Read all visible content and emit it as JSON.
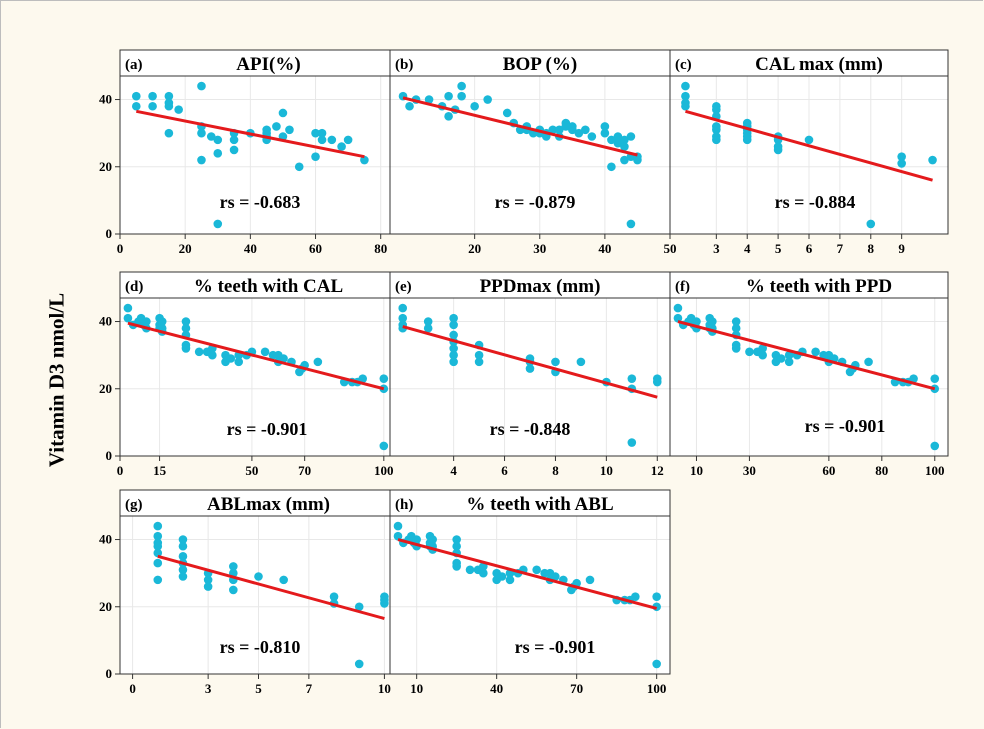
{
  "ylabel": "Vitamin D3 nmol/L",
  "colors": {
    "points": "#1ab8d8",
    "fit_line": "#e41a1c"
  },
  "chart_data": [
    {
      "type": "scatter",
      "tag": "(a)",
      "title": "API(%)",
      "annotation": "rs = -0.683",
      "xlim": [
        0,
        85
      ],
      "ylim": [
        0,
        47
      ],
      "xticks": [
        0,
        20,
        40,
        60,
        80
      ],
      "yticks": [
        0,
        20,
        40
      ],
      "show_y_labels": true,
      "points": [
        [
          5,
          41
        ],
        [
          5,
          38
        ],
        [
          10,
          41
        ],
        [
          10,
          38
        ],
        [
          15,
          41
        ],
        [
          15,
          38
        ],
        [
          15,
          39
        ],
        [
          15,
          30
        ],
        [
          18,
          37
        ],
        [
          25,
          44
        ],
        [
          25,
          32
        ],
        [
          25,
          30
        ],
        [
          25,
          22
        ],
        [
          28,
          29
        ],
        [
          30,
          28
        ],
        [
          30,
          24
        ],
        [
          30,
          3
        ],
        [
          35,
          30
        ],
        [
          35,
          25
        ],
        [
          40,
          30
        ],
        [
          45,
          31
        ],
        [
          45,
          29
        ],
        [
          45,
          30
        ],
        [
          48,
          32
        ],
        [
          50,
          36
        ],
        [
          50,
          29
        ],
        [
          52,
          31
        ],
        [
          55,
          20
        ],
        [
          60,
          30
        ],
        [
          60,
          23
        ],
        [
          62,
          28
        ],
        [
          62,
          30
        ],
        [
          65,
          28
        ],
        [
          68,
          26
        ],
        [
          70,
          28
        ],
        [
          75,
          22
        ],
        [
          45,
          28
        ],
        [
          35,
          28
        ]
      ],
      "fit": [
        [
          5,
          36.5
        ],
        [
          75,
          23
        ]
      ]
    },
    {
      "type": "scatter",
      "tag": "(b)",
      "title": "BOP (%)",
      "annotation": "rs = -0.879",
      "xlim": [
        7,
        50
      ],
      "ylim": [
        0,
        47
      ],
      "xticks": [
        20,
        30,
        40,
        50
      ],
      "yticks": [
        0,
        20,
        40
      ],
      "show_y_labels": false,
      "points": [
        [
          9,
          41
        ],
        [
          10,
          38
        ],
        [
          11,
          40
        ],
        [
          13,
          40
        ],
        [
          15,
          38
        ],
        [
          16,
          41
        ],
        [
          16,
          35
        ],
        [
          17,
          37
        ],
        [
          18,
          44
        ],
        [
          18,
          41
        ],
        [
          20,
          38
        ],
        [
          22,
          40
        ],
        [
          25,
          36
        ],
        [
          26,
          33
        ],
        [
          27,
          31
        ],
        [
          28,
          32
        ],
        [
          28,
          31
        ],
        [
          29,
          30
        ],
        [
          30,
          31
        ],
        [
          31,
          29
        ],
        [
          31,
          30
        ],
        [
          32,
          31
        ],
        [
          33,
          29
        ],
        [
          33,
          31
        ],
        [
          34,
          33
        ],
        [
          35,
          32
        ],
        [
          35,
          31
        ],
        [
          36,
          30
        ],
        [
          37,
          31
        ],
        [
          38,
          29
        ],
        [
          40,
          32
        ],
        [
          40,
          30
        ],
        [
          41,
          20
        ],
        [
          41,
          28
        ],
        [
          42,
          27
        ],
        [
          42,
          29
        ],
        [
          43,
          28
        ],
        [
          43,
          26
        ],
        [
          43,
          22
        ],
        [
          44,
          29
        ],
        [
          44,
          23
        ],
        [
          44,
          3
        ],
        [
          45,
          22
        ],
        [
          45,
          23
        ],
        [
          34,
          32
        ],
        [
          30,
          30
        ]
      ],
      "fit": [
        [
          9,
          40.5
        ],
        [
          45,
          23.5
        ]
      ]
    },
    {
      "type": "scatter",
      "tag": "(c)",
      "title": "CAL max (mm)",
      "annotation": "rs = -0.884",
      "xlim": [
        1.5,
        10.5
      ],
      "ylim": [
        0,
        47
      ],
      "xticks": [
        3,
        4,
        5,
        6,
        7,
        8,
        9
      ],
      "yticks": [
        0,
        20,
        40
      ],
      "show_y_labels": false,
      "points": [
        [
          2,
          44
        ],
        [
          2,
          41
        ],
        [
          2,
          39
        ],
        [
          2,
          38
        ],
        [
          3,
          38
        ],
        [
          3,
          37
        ],
        [
          3,
          35
        ],
        [
          3,
          32
        ],
        [
          3,
          31
        ],
        [
          3,
          29
        ],
        [
          3,
          28
        ],
        [
          4,
          33
        ],
        [
          4,
          32
        ],
        [
          4,
          31
        ],
        [
          4,
          30
        ],
        [
          4,
          29
        ],
        [
          4,
          28
        ],
        [
          5,
          29
        ],
        [
          5,
          28
        ],
        [
          5,
          26
        ],
        [
          5,
          25
        ],
        [
          6,
          28
        ],
        [
          8,
          3
        ],
        [
          9,
          23
        ],
        [
          9,
          21
        ],
        [
          10,
          22
        ]
      ],
      "fit": [
        [
          2,
          36.5
        ],
        [
          10,
          16
        ]
      ]
    },
    {
      "type": "scatter",
      "tag": "(d)",
      "title": "% teeth with CAL",
      "annotation": "rs = -0.901",
      "xlim": [
        0,
        105
      ],
      "ylim": [
        0,
        47
      ],
      "xticks": [
        0,
        15,
        50,
        70,
        100
      ],
      "yticks": [
        0,
        20,
        40
      ],
      "show_y_labels": true,
      "points": [
        [
          3,
          44
        ],
        [
          3,
          41
        ],
        [
          5,
          39
        ],
        [
          7,
          40
        ],
        [
          8,
          41
        ],
        [
          9,
          39
        ],
        [
          10,
          38
        ],
        [
          10,
          40
        ],
        [
          15,
          38
        ],
        [
          15,
          41
        ],
        [
          15,
          39
        ],
        [
          16,
          40
        ],
        [
          16,
          38
        ],
        [
          16,
          37
        ],
        [
          25,
          40
        ],
        [
          25,
          38
        ],
        [
          25,
          36
        ],
        [
          25,
          33
        ],
        [
          25,
          32
        ],
        [
          30,
          31
        ],
        [
          33,
          31
        ],
        [
          35,
          30
        ],
        [
          40,
          30
        ],
        [
          40,
          28
        ],
        [
          42,
          29
        ],
        [
          45,
          28
        ],
        [
          48,
          30
        ],
        [
          50,
          31
        ],
        [
          55,
          31
        ],
        [
          58,
          30
        ],
        [
          60,
          30
        ],
        [
          62,
          29
        ],
        [
          65,
          28
        ],
        [
          68,
          25
        ],
        [
          69,
          26
        ],
        [
          70,
          27
        ],
        [
          75,
          28
        ],
        [
          85,
          22
        ],
        [
          88,
          22
        ],
        [
          90,
          22
        ],
        [
          92,
          23
        ],
        [
          100,
          23
        ],
        [
          100,
          20
        ],
        [
          100,
          3
        ],
        [
          60,
          28
        ],
        [
          45,
          30
        ],
        [
          35,
          32
        ]
      ],
      "fit": [
        [
          3,
          39.5
        ],
        [
          100,
          20
        ]
      ]
    },
    {
      "type": "scatter",
      "tag": "(e)",
      "title": "PPDmax (mm)",
      "annotation": "rs = -0.848",
      "xlim": [
        1.5,
        12.5
      ],
      "ylim": [
        0,
        47
      ],
      "xticks": [
        4,
        6,
        8,
        10,
        12
      ],
      "yticks": [
        0,
        20,
        40
      ],
      "show_y_labels": false,
      "points": [
        [
          2,
          44
        ],
        [
          2,
          41
        ],
        [
          2,
          39
        ],
        [
          2,
          38
        ],
        [
          3,
          40
        ],
        [
          3,
          38
        ],
        [
          4,
          41
        ],
        [
          4,
          39
        ],
        [
          4,
          36
        ],
        [
          4,
          34
        ],
        [
          4,
          32
        ],
        [
          4,
          30
        ],
        [
          4,
          28
        ],
        [
          5,
          33
        ],
        [
          5,
          30
        ],
        [
          5,
          28
        ],
        [
          7,
          29
        ],
        [
          7,
          28
        ],
        [
          7,
          26
        ],
        [
          8,
          28
        ],
        [
          8,
          25
        ],
        [
          9,
          28
        ],
        [
          10,
          22
        ],
        [
          11,
          23
        ],
        [
          11,
          20
        ],
        [
          11,
          4
        ],
        [
          12,
          23
        ],
        [
          12,
          22
        ]
      ],
      "fit": [
        [
          2,
          38.5
        ],
        [
          12,
          17.5
        ]
      ]
    },
    {
      "type": "scatter",
      "tag": "(f)",
      "title": "% teeth with PPD",
      "annotation": "rs = -0.901",
      "xlim": [
        0,
        105
      ],
      "ylim": [
        0,
        47
      ],
      "xticks": [
        10,
        30,
        60,
        80,
        100
      ],
      "yticks": [
        0,
        20,
        40
      ],
      "show_y_labels": false,
      "points": [
        [
          3,
          44
        ],
        [
          3,
          41
        ],
        [
          5,
          39
        ],
        [
          7,
          40
        ],
        [
          8,
          41
        ],
        [
          9,
          39
        ],
        [
          10,
          38
        ],
        [
          10,
          40
        ],
        [
          15,
          38
        ],
        [
          15,
          41
        ],
        [
          15,
          39
        ],
        [
          16,
          40
        ],
        [
          16,
          38
        ],
        [
          16,
          37
        ],
        [
          25,
          40
        ],
        [
          25,
          38
        ],
        [
          25,
          36
        ],
        [
          25,
          33
        ],
        [
          25,
          32
        ],
        [
          30,
          31
        ],
        [
          33,
          31
        ],
        [
          35,
          30
        ],
        [
          40,
          30
        ],
        [
          40,
          28
        ],
        [
          42,
          29
        ],
        [
          45,
          28
        ],
        [
          48,
          30
        ],
        [
          50,
          31
        ],
        [
          55,
          31
        ],
        [
          58,
          30
        ],
        [
          60,
          30
        ],
        [
          62,
          29
        ],
        [
          65,
          28
        ],
        [
          68,
          25
        ],
        [
          69,
          26
        ],
        [
          70,
          27
        ],
        [
          75,
          28
        ],
        [
          85,
          22
        ],
        [
          88,
          22
        ],
        [
          90,
          22
        ],
        [
          92,
          23
        ],
        [
          100,
          23
        ],
        [
          100,
          20
        ],
        [
          100,
          3
        ],
        [
          60,
          28
        ],
        [
          45,
          30
        ],
        [
          35,
          32
        ]
      ],
      "fit": [
        [
          3,
          40
        ],
        [
          100,
          20
        ]
      ]
    },
    {
      "type": "scatter",
      "tag": "(g)",
      "title": "ABLmax (mm)",
      "annotation": "rs = -0.810",
      "xlim": [
        -0.5,
        10.5
      ],
      "ylim": [
        0,
        47
      ],
      "xticks": [
        0,
        3,
        5,
        7,
        10
      ],
      "yticks": [
        0,
        20,
        40
      ],
      "show_y_labels": true,
      "points": [
        [
          1,
          44
        ],
        [
          1,
          41
        ],
        [
          1,
          39
        ],
        [
          1,
          38
        ],
        [
          1,
          36
        ],
        [
          1,
          33
        ],
        [
          1,
          28
        ],
        [
          2,
          40
        ],
        [
          2,
          38
        ],
        [
          2,
          35
        ],
        [
          2,
          33
        ],
        [
          2,
          31
        ],
        [
          2,
          29
        ],
        [
          3,
          30
        ],
        [
          3,
          28
        ],
        [
          3,
          26
        ],
        [
          4,
          32
        ],
        [
          4,
          30
        ],
        [
          4,
          28
        ],
        [
          4,
          25
        ],
        [
          5,
          29
        ],
        [
          6,
          28
        ],
        [
          8,
          23
        ],
        [
          8,
          21
        ],
        [
          9,
          20
        ],
        [
          9,
          3
        ],
        [
          10,
          23
        ],
        [
          10,
          22
        ],
        [
          10,
          21
        ]
      ],
      "fit": [
        [
          1,
          35
        ],
        [
          10,
          16.5
        ]
      ]
    },
    {
      "type": "scatter",
      "tag": "(h)",
      "title": "% teeth with ABL",
      "annotation": "rs = -0.901",
      "xlim": [
        0,
        105
      ],
      "ylim": [
        0,
        47
      ],
      "xticks": [
        10,
        40,
        70,
        100
      ],
      "yticks": [
        0,
        20,
        40
      ],
      "show_y_labels": false,
      "points": [
        [
          3,
          44
        ],
        [
          3,
          41
        ],
        [
          5,
          39
        ],
        [
          7,
          40
        ],
        [
          8,
          41
        ],
        [
          9,
          39
        ],
        [
          10,
          38
        ],
        [
          10,
          40
        ],
        [
          15,
          38
        ],
        [
          15,
          41
        ],
        [
          15,
          39
        ],
        [
          16,
          40
        ],
        [
          16,
          38
        ],
        [
          16,
          37
        ],
        [
          25,
          40
        ],
        [
          25,
          38
        ],
        [
          25,
          36
        ],
        [
          25,
          33
        ],
        [
          25,
          32
        ],
        [
          30,
          31
        ],
        [
          33,
          31
        ],
        [
          35,
          30
        ],
        [
          40,
          30
        ],
        [
          40,
          28
        ],
        [
          42,
          29
        ],
        [
          45,
          28
        ],
        [
          48,
          30
        ],
        [
          50,
          31
        ],
        [
          55,
          31
        ],
        [
          58,
          30
        ],
        [
          60,
          30
        ],
        [
          62,
          29
        ],
        [
          65,
          28
        ],
        [
          68,
          25
        ],
        [
          69,
          26
        ],
        [
          70,
          27
        ],
        [
          75,
          28
        ],
        [
          85,
          22
        ],
        [
          88,
          22
        ],
        [
          90,
          22
        ],
        [
          92,
          23
        ],
        [
          100,
          23
        ],
        [
          100,
          20
        ],
        [
          100,
          3
        ],
        [
          60,
          28
        ],
        [
          45,
          30
        ],
        [
          35,
          32
        ]
      ],
      "fit": [
        [
          3,
          40
        ],
        [
          100,
          19.5
        ]
      ]
    }
  ]
}
